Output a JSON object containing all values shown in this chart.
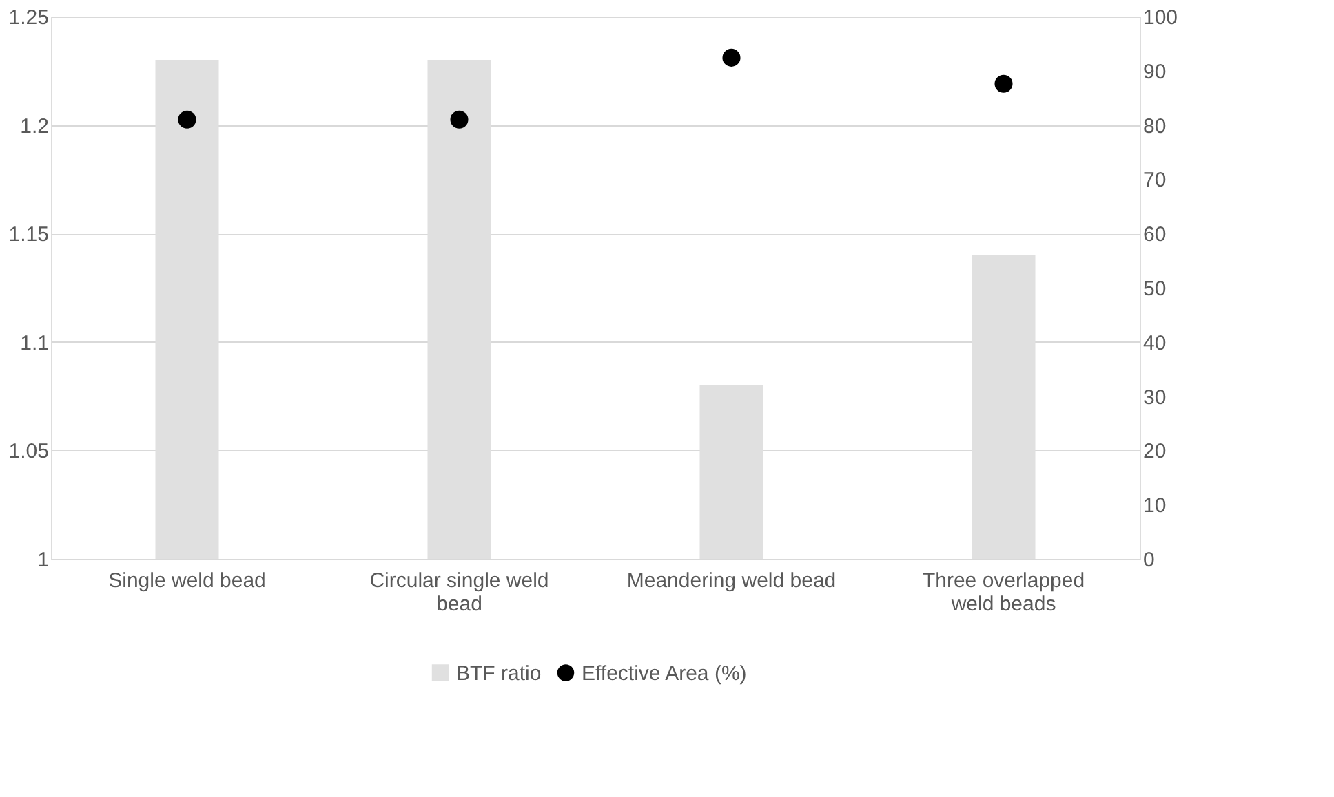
{
  "chart_data": {
    "type": "bar",
    "categories": [
      "Single weld bead",
      "Circular single weld bead",
      "Meandering weld bead",
      "Three overlapped weld beads"
    ],
    "series": [
      {
        "name": "BTF ratio",
        "color": "#e0e0e0",
        "values": [
          1.23,
          1.23,
          1.08,
          1.14
        ]
      },
      {
        "name": "Effective Area (%)",
        "type": "scatter",
        "axis": "y2",
        "color": "#000000",
        "marker": "circle",
        "values": [
          81,
          81,
          92.4,
          87.6
        ]
      }
    ],
    "ylim": [
      1,
      1.25
    ],
    "yticks": [
      1,
      1.05,
      1.1,
      1.15,
      1.2,
      1.25
    ],
    "y2lim": [
      0,
      100
    ],
    "y2ticks": [
      0,
      10,
      20,
      30,
      40,
      50,
      60,
      70,
      80,
      90,
      100
    ],
    "grid": "y",
    "legend": "bottom"
  }
}
